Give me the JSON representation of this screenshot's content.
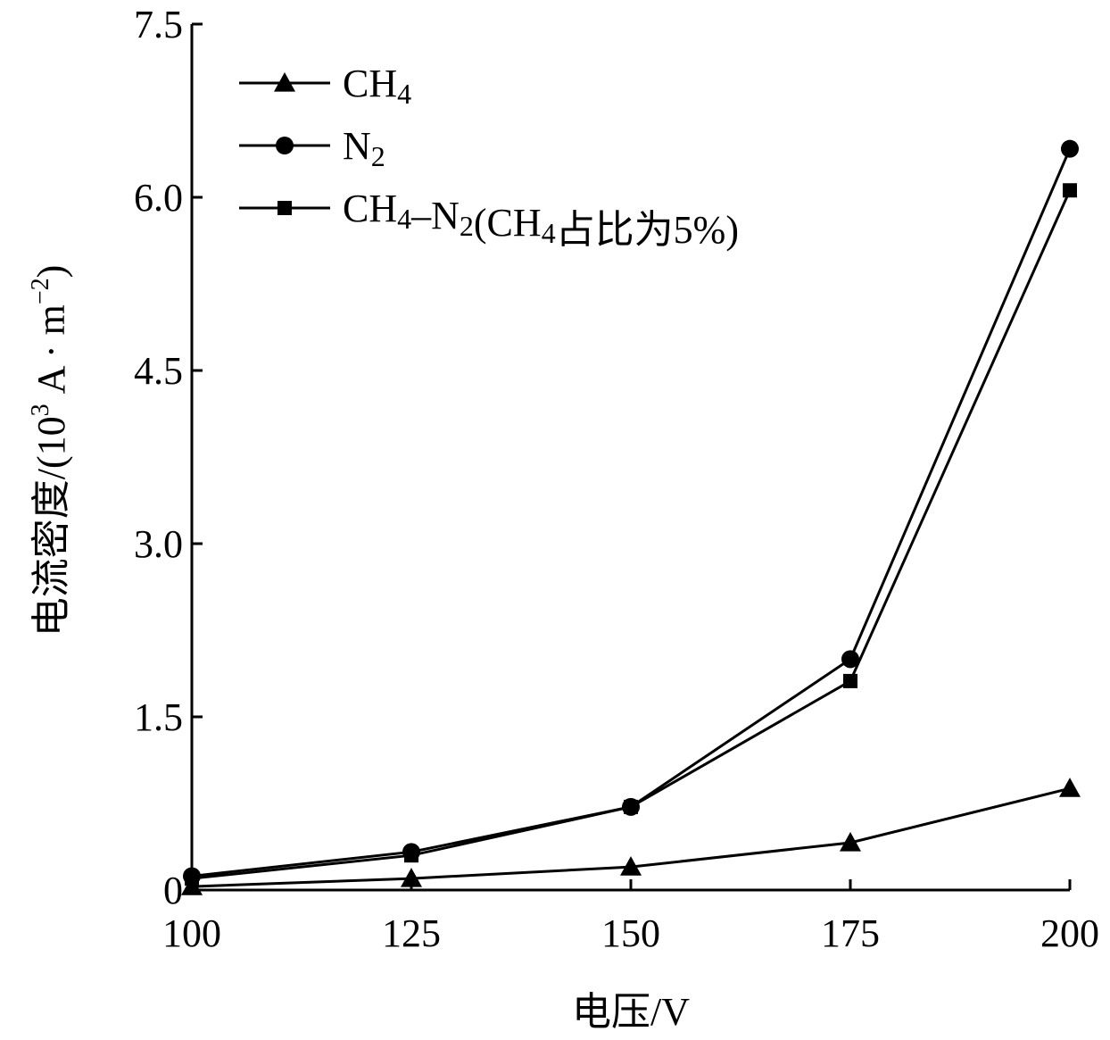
{
  "chart_data": {
    "type": "line",
    "xlabel": "电压/V",
    "ylabel_main": "电流密度/(10",
    "ylabel_sup": "3",
    "ylabel_tail": " A · m",
    "ylabel_sup2": "−2",
    "ylabel_end": ")",
    "x": [
      100,
      125,
      150,
      175,
      200
    ],
    "xlim": [
      100,
      200
    ],
    "ylim": [
      0,
      7.5
    ],
    "xticks": [
      100,
      125,
      150,
      175,
      200
    ],
    "xtick_labels": [
      "100",
      "125",
      "150",
      "175",
      "200"
    ],
    "yticks": [
      0,
      1.5,
      3.0,
      4.5,
      6.0,
      7.5
    ],
    "ytick_labels": [
      "0",
      "1.5",
      "3.0",
      "4.5",
      "6.0",
      "7.5"
    ],
    "grid": false,
    "legend_position": "top-left",
    "series": [
      {
        "name": "CH4",
        "legend_parts": [
          {
            "t": "CH"
          },
          {
            "t": "4",
            "sub": true
          }
        ],
        "marker": "triangle",
        "values": [
          0.03,
          0.1,
          0.2,
          0.41,
          0.88
        ]
      },
      {
        "name": "N2",
        "legend_parts": [
          {
            "t": "N"
          },
          {
            "t": "2",
            "sub": true
          }
        ],
        "marker": "circle",
        "values": [
          0.12,
          0.33,
          0.72,
          2.0,
          6.42
        ]
      },
      {
        "name": "CH4-N2(CH4占比为5%)",
        "legend_parts": [
          {
            "t": "CH"
          },
          {
            "t": "4",
            "sub": true
          },
          {
            "t": "–N"
          },
          {
            "t": "2",
            "sub": true
          },
          {
            "t": "(CH"
          },
          {
            "t": "4",
            "sub": true
          },
          {
            "t": "占比为5%)"
          }
        ],
        "marker": "square",
        "values": [
          0.1,
          0.3,
          0.72,
          1.81,
          6.06
        ]
      }
    ]
  }
}
